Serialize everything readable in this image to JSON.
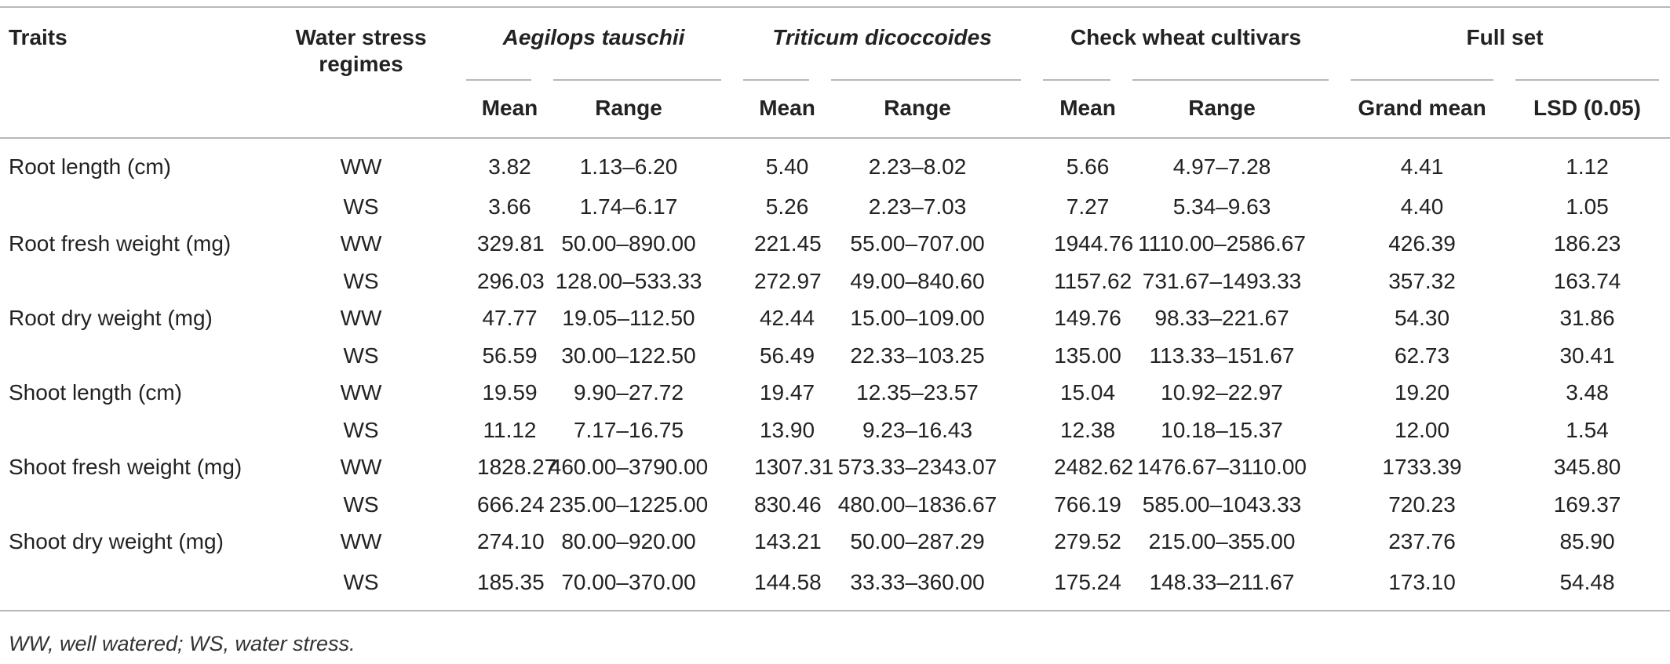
{
  "table": {
    "header": {
      "traits": "Traits",
      "regime_line1": "Water stress",
      "regime_line2": "regimes",
      "groups": [
        "Aegilops tauschii",
        "Triticum dicoccoides",
        "Check wheat cultivars",
        "Full set"
      ],
      "sub": {
        "mean": "Mean",
        "range": "Range",
        "grand_mean": "Grand mean",
        "lsd": "LSD (0.05)"
      }
    },
    "rows": [
      {
        "trait": "Root length (cm)",
        "regime": "WW",
        "ae_mean": "3.82",
        "ae_range": "1.13–6.20",
        "td_mean": "5.40",
        "td_range": "2.23–8.02",
        "cw_mean": "5.66",
        "cw_range": "4.97–7.28",
        "grand_mean": "4.41",
        "lsd": "1.12"
      },
      {
        "trait": "",
        "regime": "WS",
        "ae_mean": "3.66",
        "ae_range": "1.74–6.17",
        "td_mean": "5.26",
        "td_range": "2.23–7.03",
        "cw_mean": "7.27",
        "cw_range": "5.34–9.63",
        "grand_mean": "4.40",
        "lsd": "1.05"
      },
      {
        "trait": "Root fresh weight (mg)",
        "regime": "WW",
        "ae_mean": "329.81",
        "ae_range": "50.00–890.00",
        "td_mean": "221.45",
        "td_range": "55.00–707.00",
        "cw_mean": "1944.76",
        "cw_range": "1110.00–2586.67",
        "grand_mean": "426.39",
        "lsd": "186.23"
      },
      {
        "trait": "",
        "regime": "WS",
        "ae_mean": "296.03",
        "ae_range": "128.00–533.33",
        "td_mean": "272.97",
        "td_range": "49.00–840.60",
        "cw_mean": "1157.62",
        "cw_range": "731.67–1493.33",
        "grand_mean": "357.32",
        "lsd": "163.74"
      },
      {
        "trait": "Root dry weight (mg)",
        "regime": "WW",
        "ae_mean": "47.77",
        "ae_range": "19.05–112.50",
        "td_mean": "42.44",
        "td_range": "15.00–109.00",
        "cw_mean": "149.76",
        "cw_range": "98.33–221.67",
        "grand_mean": "54.30",
        "lsd": "31.86"
      },
      {
        "trait": "",
        "regime": "WS",
        "ae_mean": "56.59",
        "ae_range": "30.00–122.50",
        "td_mean": "56.49",
        "td_range": "22.33–103.25",
        "cw_mean": "135.00",
        "cw_range": "113.33–151.67",
        "grand_mean": "62.73",
        "lsd": "30.41"
      },
      {
        "trait": "Shoot length (cm)",
        "regime": "WW",
        "ae_mean": "19.59",
        "ae_range": "9.90–27.72",
        "td_mean": "19.47",
        "td_range": "12.35–23.57",
        "cw_mean": "15.04",
        "cw_range": "10.92–22.97",
        "grand_mean": "19.20",
        "lsd": "3.48"
      },
      {
        "trait": "",
        "regime": "WS",
        "ae_mean": "11.12",
        "ae_range": "7.17–16.75",
        "td_mean": "13.90",
        "td_range": "9.23–16.43",
        "cw_mean": "12.38",
        "cw_range": "10.18–15.37",
        "grand_mean": "12.00",
        "lsd": "1.54"
      },
      {
        "trait": "Shoot fresh weight (mg)",
        "regime": "WW",
        "ae_mean": "1828.27",
        "ae_range": "460.00–3790.00",
        "td_mean": "1307.31",
        "td_range": "573.33–2343.07",
        "cw_mean": "2482.62",
        "cw_range": "1476.67–3110.00",
        "grand_mean": "1733.39",
        "lsd": "345.80"
      },
      {
        "trait": "",
        "regime": "WS",
        "ae_mean": "666.24",
        "ae_range": "235.00–1225.00",
        "td_mean": "830.46",
        "td_range": "480.00–1836.67",
        "cw_mean": "766.19",
        "cw_range": "585.00–1043.33",
        "grand_mean": "720.23",
        "lsd": "169.37"
      },
      {
        "trait": "Shoot dry weight (mg)",
        "regime": "WW",
        "ae_mean": "274.10",
        "ae_range": "80.00–920.00",
        "td_mean": "143.21",
        "td_range": "50.00–287.29",
        "cw_mean": "279.52",
        "cw_range": "215.00–355.00",
        "grand_mean": "237.76",
        "lsd": "85.90"
      },
      {
        "trait": "",
        "regime": "WS",
        "ae_mean": "185.35",
        "ae_range": "70.00–370.00",
        "td_mean": "144.58",
        "td_range": "33.33–360.00",
        "cw_mean": "175.24",
        "cw_range": "148.33–211.67",
        "grand_mean": "173.10",
        "lsd": "54.48"
      }
    ]
  },
  "footnote": "WW, well watered; WS, water stress."
}
